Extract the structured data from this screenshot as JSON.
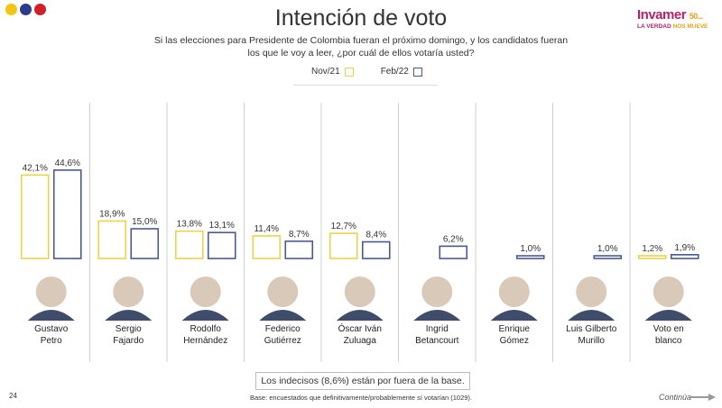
{
  "header": {
    "title": "Intención de voto",
    "subtitle": "Si las elecciones para Presidente de Colombia fueran el próximo domingo, y los candidatos fueran los que le voy a leer, ¿por cuál de ellos votaría usted?",
    "logo_name": "Invamer",
    "logo_years": "50",
    "logo_tagline_1": "LA VERDAD",
    "logo_tagline_2": "NOS MUEVE"
  },
  "colors": {
    "dot_yellow": "#f2c510",
    "dot_blue": "#2c3c8a",
    "dot_red": "#d0202a",
    "nov": "#e8d44a",
    "feb": "#4a5a8c"
  },
  "chart_data": {
    "type": "bar",
    "categories": [
      "Gustavo Petro",
      "Sergio Fajardo",
      "Rodolfo Hernández",
      "Federico Gutiérrez",
      "Óscar Iván Zuluaga",
      "Ingrid Betancourt",
      "Enrique Gómez",
      "Luis Gilberto Murillo",
      "Voto en blanco"
    ],
    "category_lines": [
      [
        "Gustavo",
        "Petro"
      ],
      [
        "Sergio",
        "Fajardo"
      ],
      [
        "Rodolfo",
        "Hernández"
      ],
      [
        "Federico",
        "Gutiérrez"
      ],
      [
        "Óscar Iván",
        "Zuluaga"
      ],
      [
        "Ingrid",
        "Betancourt"
      ],
      [
        "Enrique",
        "Gómez"
      ],
      [
        "Luis Gilberto",
        "Murillo"
      ],
      [
        "Voto en",
        "blanco"
      ]
    ],
    "series": [
      {
        "name": "Nov/21",
        "values": [
          42.1,
          18.9,
          13.8,
          11.4,
          12.7,
          null,
          null,
          null,
          1.2
        ],
        "labels": [
          "42,1%",
          "18,9%",
          "13,8%",
          "11,4%",
          "12,7%",
          "",
          "",
          "",
          "1,2%"
        ]
      },
      {
        "name": "Feb/22",
        "values": [
          44.6,
          15.0,
          13.1,
          8.7,
          8.4,
          6.2,
          1.0,
          1.0,
          1.9
        ],
        "labels": [
          "44,6%",
          "15,0%",
          "13,1%",
          "8,7%",
          "8,4%",
          "6,2%",
          "1,0%",
          "1,0%",
          "1,9%"
        ]
      }
    ]
  },
  "footer": {
    "note": "Los indecisos (8,6%) están por fuera de la base.",
    "page_number": "24",
    "base": "Base: encuestados que definitivamente/probablemente sí votarían (1029).",
    "continue_label": "Continúa"
  }
}
